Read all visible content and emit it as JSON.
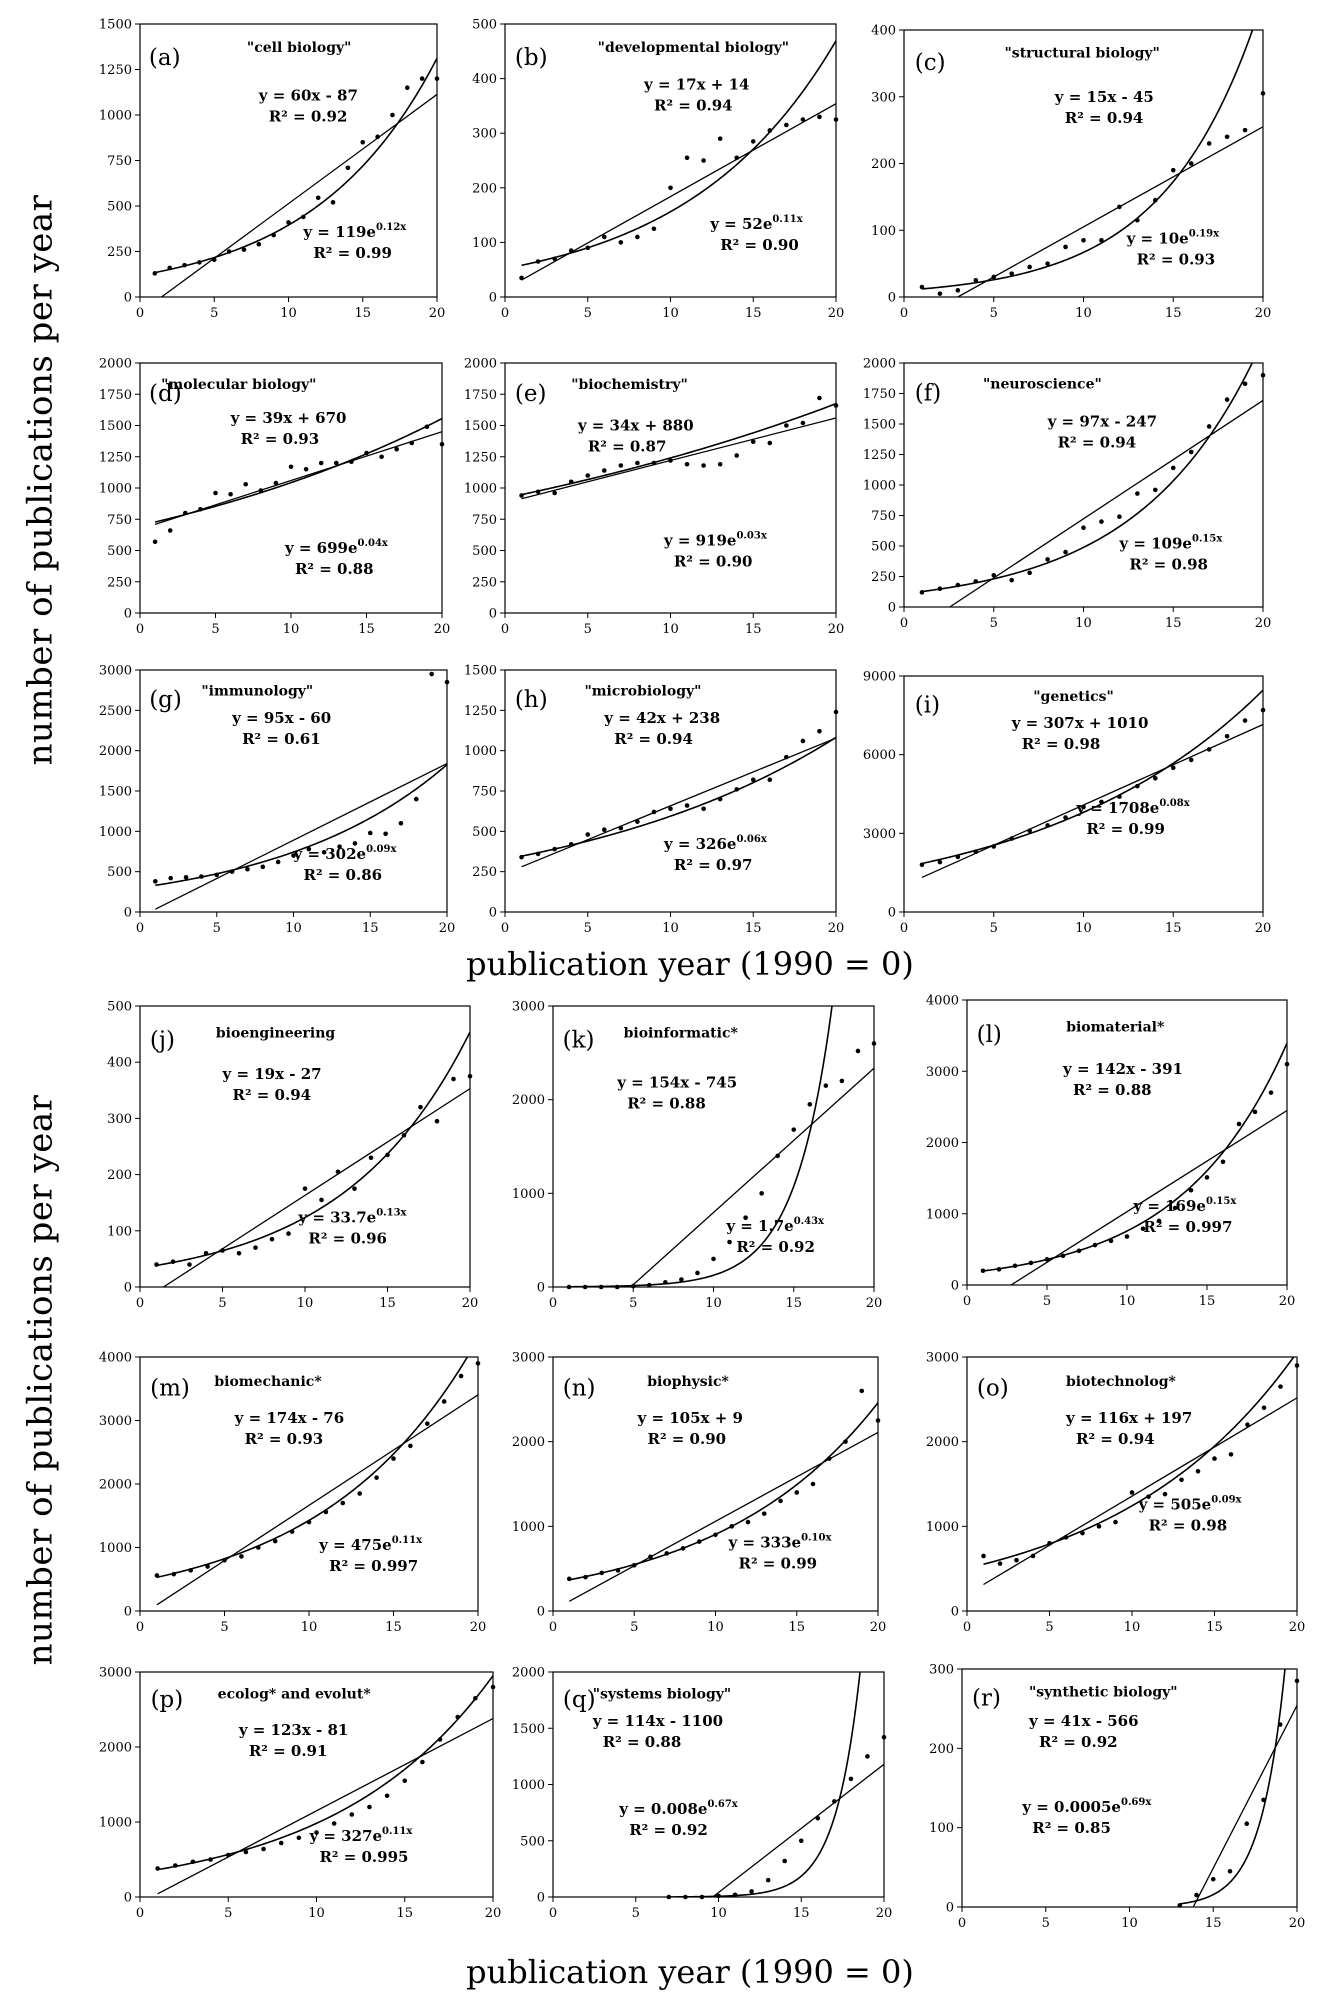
{
  "axis_titles": {
    "y_top": "number of publications per year",
    "y_bottom": "number of publications per year",
    "x_top": "publication year (1990 = 0)",
    "x_bottom": "publication year (1990 = 0)"
  },
  "chart_data": [
    {
      "id": "a",
      "type": "scatter",
      "label": "(a)",
      "title": "\"cell biology\"",
      "xlim": [
        0,
        20
      ],
      "ylim": [
        0,
        1500
      ],
      "yticks": [
        0,
        250,
        500,
        750,
        1000,
        1250,
        1500
      ],
      "x": [
        1,
        2,
        3,
        4,
        5,
        6,
        7,
        8,
        9,
        10,
        11,
        12,
        13,
        14,
        15,
        16,
        17,
        18,
        19,
        20
      ],
      "y": [
        130,
        160,
        175,
        190,
        205,
        250,
        260,
        290,
        340,
        410,
        440,
        545,
        520,
        710,
        850,
        880,
        1000,
        1150,
        1200,
        1200
      ],
      "linear_fit": {
        "text": "y = 60x - 87",
        "r2": "R² = 0.92",
        "a": 60,
        "b": -87
      },
      "exp_fit": {
        "text": "y = 119e^0.12x",
        "r2": "R² = 0.99",
        "a": 119,
        "k": 0.12
      }
    },
    {
      "id": "b",
      "type": "scatter",
      "label": "(b)",
      "title": "\"developmental biology\"",
      "xlim": [
        0,
        20
      ],
      "ylim": [
        0,
        500
      ],
      "yticks": [
        0,
        100,
        200,
        300,
        400,
        500
      ],
      "x": [
        1,
        2,
        3,
        4,
        5,
        6,
        7,
        8,
        9,
        10,
        11,
        12,
        13,
        14,
        15,
        16,
        17,
        18,
        19,
        20
      ],
      "y": [
        35,
        65,
        70,
        85,
        90,
        110,
        100,
        110,
        125,
        200,
        255,
        250,
        290,
        255,
        285,
        305,
        315,
        325,
        330,
        325
      ],
      "linear_fit": {
        "text": "y = 17x + 14",
        "r2": "R² = 0.94",
        "a": 17,
        "b": 14
      },
      "exp_fit": {
        "text": "y = 52e^0.11x",
        "r2": "R² = 0.90",
        "a": 52,
        "k": 0.11
      }
    },
    {
      "id": "c",
      "type": "scatter",
      "label": "(c)",
      "title": "\"structural biology\"",
      "xlim": [
        0,
        20
      ],
      "ylim": [
        0,
        400
      ],
      "yticks": [
        0,
        100,
        200,
        300,
        400
      ],
      "x": [
        1,
        2,
        3,
        4,
        5,
        6,
        7,
        8,
        9,
        10,
        11,
        12,
        13,
        14,
        15,
        16,
        17,
        18,
        19,
        20
      ],
      "y": [
        15,
        5,
        10,
        25,
        30,
        35,
        45,
        50,
        75,
        85,
        85,
        135,
        115,
        145,
        190,
        200,
        230,
        240,
        250,
        305
      ],
      "linear_fit": {
        "text": "y = 15x - 45",
        "r2": "R² = 0.94",
        "a": 15,
        "b": -45
      },
      "exp_fit": {
        "text": "y = 10e^0.19x",
        "r2": "R² = 0.93",
        "a": 10,
        "k": 0.19
      }
    },
    {
      "id": "d",
      "type": "scatter",
      "label": "(d)",
      "title": "\"molecular biology\"",
      "xlim": [
        0,
        20
      ],
      "ylim": [
        0,
        2000
      ],
      "yticks": [
        0,
        250,
        500,
        750,
        1000,
        1250,
        1500,
        1750,
        2000
      ],
      "x": [
        1,
        2,
        3,
        4,
        5,
        6,
        7,
        8,
        9,
        10,
        11,
        12,
        13,
        14,
        15,
        16,
        17,
        18,
        19,
        20
      ],
      "y": [
        570,
        660,
        800,
        830,
        960,
        950,
        1030,
        980,
        1040,
        1170,
        1150,
        1200,
        1200,
        1210,
        1280,
        1250,
        1310,
        1360,
        1490,
        1350
      ],
      "linear_fit": {
        "text": "y = 39x + 670",
        "r2": "R² = 0.93",
        "a": 39,
        "b": 670
      },
      "exp_fit": {
        "text": "y = 699e^0.04x",
        "r2": "R² = 0.88",
        "a": 699,
        "k": 0.04
      }
    },
    {
      "id": "e",
      "type": "scatter",
      "label": "(e)",
      "title": "\"biochemistry\"",
      "xlim": [
        0,
        20
      ],
      "ylim": [
        0,
        2000
      ],
      "yticks": [
        0,
        250,
        500,
        750,
        1000,
        1250,
        1500,
        1750,
        2000
      ],
      "x": [
        1,
        2,
        3,
        4,
        5,
        6,
        7,
        8,
        9,
        10,
        11,
        12,
        13,
        14,
        15,
        16,
        17,
        18,
        19,
        20
      ],
      "y": [
        940,
        970,
        960,
        1050,
        1100,
        1140,
        1180,
        1200,
        1200,
        1220,
        1190,
        1180,
        1190,
        1260,
        1370,
        1360,
        1500,
        1520,
        1720,
        1660
      ],
      "linear_fit": {
        "text": "y = 34x + 880",
        "r2": "R² = 0.87",
        "a": 34,
        "b": 880
      },
      "exp_fit": {
        "text": "y = 919e^0.03x",
        "r2": "R² = 0.90",
        "a": 919,
        "k": 0.03
      }
    },
    {
      "id": "f",
      "type": "scatter",
      "label": "(f)",
      "title": "\"neuroscience\"",
      "xlim": [
        0,
        20
      ],
      "ylim": [
        0,
        2000
      ],
      "yticks": [
        0,
        250,
        500,
        750,
        1000,
        1250,
        1500,
        1750,
        2000
      ],
      "x": [
        1,
        2,
        3,
        4,
        5,
        6,
        7,
        8,
        9,
        10,
        11,
        12,
        13,
        14,
        15,
        16,
        17,
        18,
        19,
        20
      ],
      "y": [
        120,
        150,
        180,
        210,
        260,
        220,
        280,
        390,
        450,
        650,
        700,
        740,
        930,
        960,
        1140,
        1270,
        1480,
        1700,
        1830,
        1900
      ],
      "linear_fit": {
        "text": "y = 97x - 247",
        "r2": "R² = 0.94",
        "a": 97,
        "b": -247
      },
      "exp_fit": {
        "text": "y = 109e^0.15x",
        "r2": "R² = 0.98",
        "a": 109,
        "k": 0.15
      }
    },
    {
      "id": "g",
      "type": "scatter",
      "label": "(g)",
      "title": "\"immunology\"",
      "xlim": [
        0,
        20
      ],
      "ylim": [
        0,
        3000
      ],
      "yticks": [
        0,
        500,
        1000,
        1500,
        2000,
        2500,
        3000
      ],
      "x": [
        1,
        2,
        3,
        4,
        5,
        6,
        7,
        8,
        9,
        10,
        11,
        12,
        13,
        14,
        15,
        16,
        17,
        18,
        19,
        20
      ],
      "y": [
        380,
        420,
        430,
        440,
        460,
        500,
        530,
        560,
        620,
        700,
        780,
        740,
        810,
        850,
        980,
        970,
        1100,
        1400,
        2950,
        2850
      ],
      "linear_fit": {
        "text": "y = 95x - 60",
        "r2": "R² = 0.61",
        "a": 95,
        "b": -60
      },
      "exp_fit": {
        "text": "y = 302e^0.09x",
        "r2": "R² = 0.86",
        "a": 302,
        "k": 0.09
      }
    },
    {
      "id": "h",
      "type": "scatter",
      "label": "(h)",
      "title": "\"microbiology\"",
      "xlim": [
        0,
        20
      ],
      "ylim": [
        0,
        1500
      ],
      "yticks": [
        0,
        250,
        500,
        750,
        1000,
        1250,
        1500
      ],
      "x": [
        1,
        2,
        3,
        4,
        5,
        6,
        7,
        8,
        9,
        10,
        11,
        12,
        13,
        14,
        15,
        16,
        17,
        18,
        19,
        20
      ],
      "y": [
        340,
        360,
        390,
        420,
        480,
        510,
        520,
        560,
        620,
        640,
        660,
        640,
        700,
        760,
        820,
        820,
        960,
        1060,
        1120,
        1240
      ],
      "linear_fit": {
        "text": "y = 42x + 238",
        "r2": "R² = 0.94",
        "a": 42,
        "b": 238
      },
      "exp_fit": {
        "text": "y = 326e^0.06x",
        "r2": "R² = 0.97",
        "a": 326,
        "k": 0.06
      }
    },
    {
      "id": "i",
      "type": "scatter",
      "label": "(i)",
      "title": "\"genetics\"",
      "xlim": [
        0,
        20
      ],
      "ylim": [
        0,
        9000
      ],
      "yticks": [
        0,
        3000,
        6000,
        9000
      ],
      "x": [
        1,
        2,
        3,
        4,
        5,
        6,
        7,
        8,
        9,
        10,
        11,
        12,
        13,
        14,
        15,
        16,
        17,
        18,
        19,
        20
      ],
      "y": [
        1800,
        1900,
        2100,
        2300,
        2500,
        2800,
        3100,
        3300,
        3600,
        4000,
        4200,
        4400,
        4800,
        5100,
        5500,
        5800,
        6200,
        6700,
        7300,
        7700
      ],
      "linear_fit": {
        "text": "y = 307x + 1010",
        "r2": "R² = 0.98",
        "a": 307,
        "b": 1010
      },
      "exp_fit": {
        "text": "y = 1708e^0.08x",
        "r2": "R² = 0.99",
        "a": 1708,
        "k": 0.08
      }
    },
    {
      "id": "j",
      "type": "scatter",
      "label": "(j)",
      "title": "bioengineering",
      "xlim": [
        0,
        20
      ],
      "ylim": [
        0,
        500
      ],
      "yticks": [
        0,
        100,
        200,
        300,
        400,
        500
      ],
      "x": [
        1,
        2,
        3,
        4,
        5,
        6,
        7,
        8,
        9,
        10,
        11,
        12,
        13,
        14,
        15,
        16,
        17,
        18,
        19,
        20
      ],
      "y": [
        40,
        45,
        40,
        60,
        65,
        60,
        70,
        85,
        95,
        175,
        155,
        205,
        175,
        230,
        235,
        270,
        320,
        295,
        370,
        375
      ],
      "linear_fit": {
        "text": "y = 19x - 27",
        "r2": "R² = 0.94",
        "a": 19,
        "b": -27
      },
      "exp_fit": {
        "text": "y = 33.7e^0.13x",
        "r2": "R² = 0.96",
        "a": 33.7,
        "k": 0.13
      }
    },
    {
      "id": "k",
      "type": "scatter",
      "label": "(k)",
      "title": "bioinformatic*",
      "xlim": [
        0,
        20
      ],
      "ylim": [
        0,
        3000
      ],
      "yticks": [
        0,
        1000,
        2000,
        3000
      ],
      "x": [
        1,
        2,
        3,
        4,
        5,
        6,
        7,
        8,
        9,
        10,
        11,
        12,
        13,
        14,
        15,
        16,
        17,
        18,
        19,
        20
      ],
      "y": [
        0,
        0,
        0,
        0,
        10,
        20,
        50,
        80,
        150,
        300,
        480,
        740,
        1000,
        1400,
        1680,
        1950,
        2150,
        2200,
        2520,
        2600
      ],
      "linear_fit": {
        "text": "y = 154x - 745",
        "r2": "R² = 0.88",
        "a": 154,
        "b": -745
      },
      "exp_fit": {
        "text": "y = 1.7e^0.43x",
        "r2": "R² = 0.92",
        "a": 1.7,
        "k": 0.43
      }
    },
    {
      "id": "l",
      "type": "scatter",
      "label": "(l)",
      "title": "biomaterial*",
      "xlim": [
        0,
        20
      ],
      "ylim": [
        0,
        4000
      ],
      "yticks": [
        0,
        1000,
        2000,
        3000,
        4000
      ],
      "x": [
        1,
        2,
        3,
        4,
        5,
        6,
        7,
        8,
        9,
        10,
        11,
        12,
        13,
        14,
        15,
        16,
        17,
        18,
        19,
        20
      ],
      "y": [
        200,
        220,
        270,
        310,
        360,
        410,
        480,
        560,
        620,
        680,
        790,
        900,
        1080,
        1330,
        1510,
        1730,
        2260,
        2430,
        2700,
        3100
      ],
      "linear_fit": {
        "text": "y = 142x - 391",
        "r2": "R² = 0.88",
        "a": 142,
        "b": -391
      },
      "exp_fit": {
        "text": "y = 169e^0.15x",
        "r2": "R² = 0.997",
        "a": 169,
        "k": 0.15
      }
    },
    {
      "id": "m",
      "type": "scatter",
      "label": "(m)",
      "title": "biomechanic*",
      "xlim": [
        0,
        20
      ],
      "ylim": [
        0,
        4000
      ],
      "yticks": [
        0,
        1000,
        2000,
        3000,
        4000
      ],
      "x": [
        1,
        2,
        3,
        4,
        5,
        6,
        7,
        8,
        9,
        10,
        11,
        12,
        13,
        14,
        15,
        16,
        17,
        18,
        19,
        20
      ],
      "y": [
        560,
        580,
        640,
        700,
        800,
        860,
        1000,
        1100,
        1250,
        1400,
        1560,
        1700,
        1850,
        2100,
        2400,
        2600,
        2950,
        3300,
        3700,
        3900
      ],
      "linear_fit": {
        "text": "y = 174x - 76",
        "r2": "R² = 0.93",
        "a": 174,
        "b": -76
      },
      "exp_fit": {
        "text": "y = 475e^0.11x",
        "r2": "R² = 0.997",
        "a": 475,
        "k": 0.11
      }
    },
    {
      "id": "n",
      "type": "scatter",
      "label": "(n)",
      "title": "biophysic*",
      "xlim": [
        0,
        20
      ],
      "ylim": [
        0,
        3000
      ],
      "yticks": [
        0,
        1000,
        2000,
        3000
      ],
      "x": [
        1,
        2,
        3,
        4,
        5,
        6,
        7,
        8,
        9,
        10,
        11,
        12,
        13,
        14,
        15,
        16,
        17,
        18,
        19,
        20
      ],
      "y": [
        380,
        400,
        450,
        480,
        540,
        640,
        680,
        740,
        820,
        900,
        1000,
        1050,
        1150,
        1300,
        1400,
        1500,
        1800,
        2000,
        2600,
        2250
      ],
      "linear_fit": {
        "text": "y = 105x + 9",
        "r2": "R² = 0.90",
        "a": 105,
        "b": 9
      },
      "exp_fit": {
        "text": "y = 333e^0.10x",
        "r2": "R² = 0.99",
        "a": 333,
        "k": 0.1
      }
    },
    {
      "id": "o",
      "type": "scatter",
      "label": "(o)",
      "title": "biotechnolog*",
      "xlim": [
        0,
        20
      ],
      "ylim": [
        0,
        3000
      ],
      "yticks": [
        0,
        1000,
        2000,
        3000
      ],
      "x": [
        1,
        2,
        3,
        4,
        5,
        6,
        7,
        8,
        9,
        10,
        11,
        12,
        13,
        14,
        15,
        16,
        17,
        18,
        19,
        20
      ],
      "y": [
        650,
        560,
        600,
        650,
        800,
        870,
        920,
        1000,
        1050,
        1400,
        1350,
        1380,
        1550,
        1650,
        1800,
        1850,
        2200,
        2400,
        2650,
        2900
      ],
      "linear_fit": {
        "text": "y = 116x + 197",
        "r2": "R² = 0.94",
        "a": 116,
        "b": 197
      },
      "exp_fit": {
        "text": "y = 505e^0.09x",
        "r2": "R² = 0.98",
        "a": 505,
        "k": 0.09
      }
    },
    {
      "id": "p",
      "type": "scatter",
      "label": "(p)",
      "title": "ecolog* and evolut*",
      "xlim": [
        0,
        20
      ],
      "ylim": [
        0,
        3000
      ],
      "yticks": [
        0,
        1000,
        2000,
        3000
      ],
      "x": [
        1,
        2,
        3,
        4,
        5,
        6,
        7,
        8,
        9,
        10,
        11,
        12,
        13,
        14,
        15,
        16,
        17,
        18,
        19,
        20
      ],
      "y": [
        380,
        420,
        470,
        500,
        560,
        600,
        640,
        720,
        790,
        860,
        980,
        1100,
        1200,
        1350,
        1550,
        1800,
        2100,
        2400,
        2650,
        2800
      ],
      "linear_fit": {
        "text": "y = 123x - 81",
        "r2": "R² = 0.91",
        "a": 123,
        "b": -81
      },
      "exp_fit": {
        "text": "y = 327e^0.11x",
        "r2": "R² = 0.995",
        "a": 327,
        "k": 0.11
      }
    },
    {
      "id": "q",
      "type": "scatter",
      "label": "(q)",
      "title": "\"systems biology\"",
      "xlim": [
        0,
        20
      ],
      "ylim": [
        0,
        2000
      ],
      "yticks": [
        0,
        500,
        1000,
        1500,
        2000
      ],
      "x": [
        7,
        8,
        9,
        10,
        11,
        12,
        13,
        14,
        15,
        16,
        17,
        18,
        19,
        20
      ],
      "y": [
        0,
        0,
        0,
        10,
        20,
        50,
        150,
        320,
        500,
        700,
        850,
        1050,
        1250,
        1420
      ],
      "linear_fit": {
        "text": "y = 114x - 1100",
        "r2": "R² = 0.88",
        "a": 114,
        "b": -1100
      },
      "exp_fit": {
        "text": "y = 0.008e^0.67x",
        "r2": "R² = 0.92",
        "a": 0.008,
        "k": 0.67
      }
    },
    {
      "id": "r",
      "type": "scatter",
      "label": "(r)",
      "title": "\"synthetic biology\"",
      "xlim": [
        0,
        20
      ],
      "ylim": [
        0,
        300
      ],
      "yticks": [
        0,
        100,
        200,
        300
      ],
      "x": [
        13,
        14,
        15,
        16,
        17,
        18,
        19,
        20
      ],
      "y": [
        2,
        15,
        35,
        45,
        105,
        135,
        230,
        285
      ],
      "linear_fit": {
        "text": "y = 41x - 566",
        "r2": "R² = 0.92",
        "a": 41,
        "b": -566
      },
      "exp_fit": {
        "text": "y = 0.0005e^0.69x",
        "r2": "R² = 0.85",
        "a": 0.0005,
        "k": 0.69
      }
    }
  ]
}
